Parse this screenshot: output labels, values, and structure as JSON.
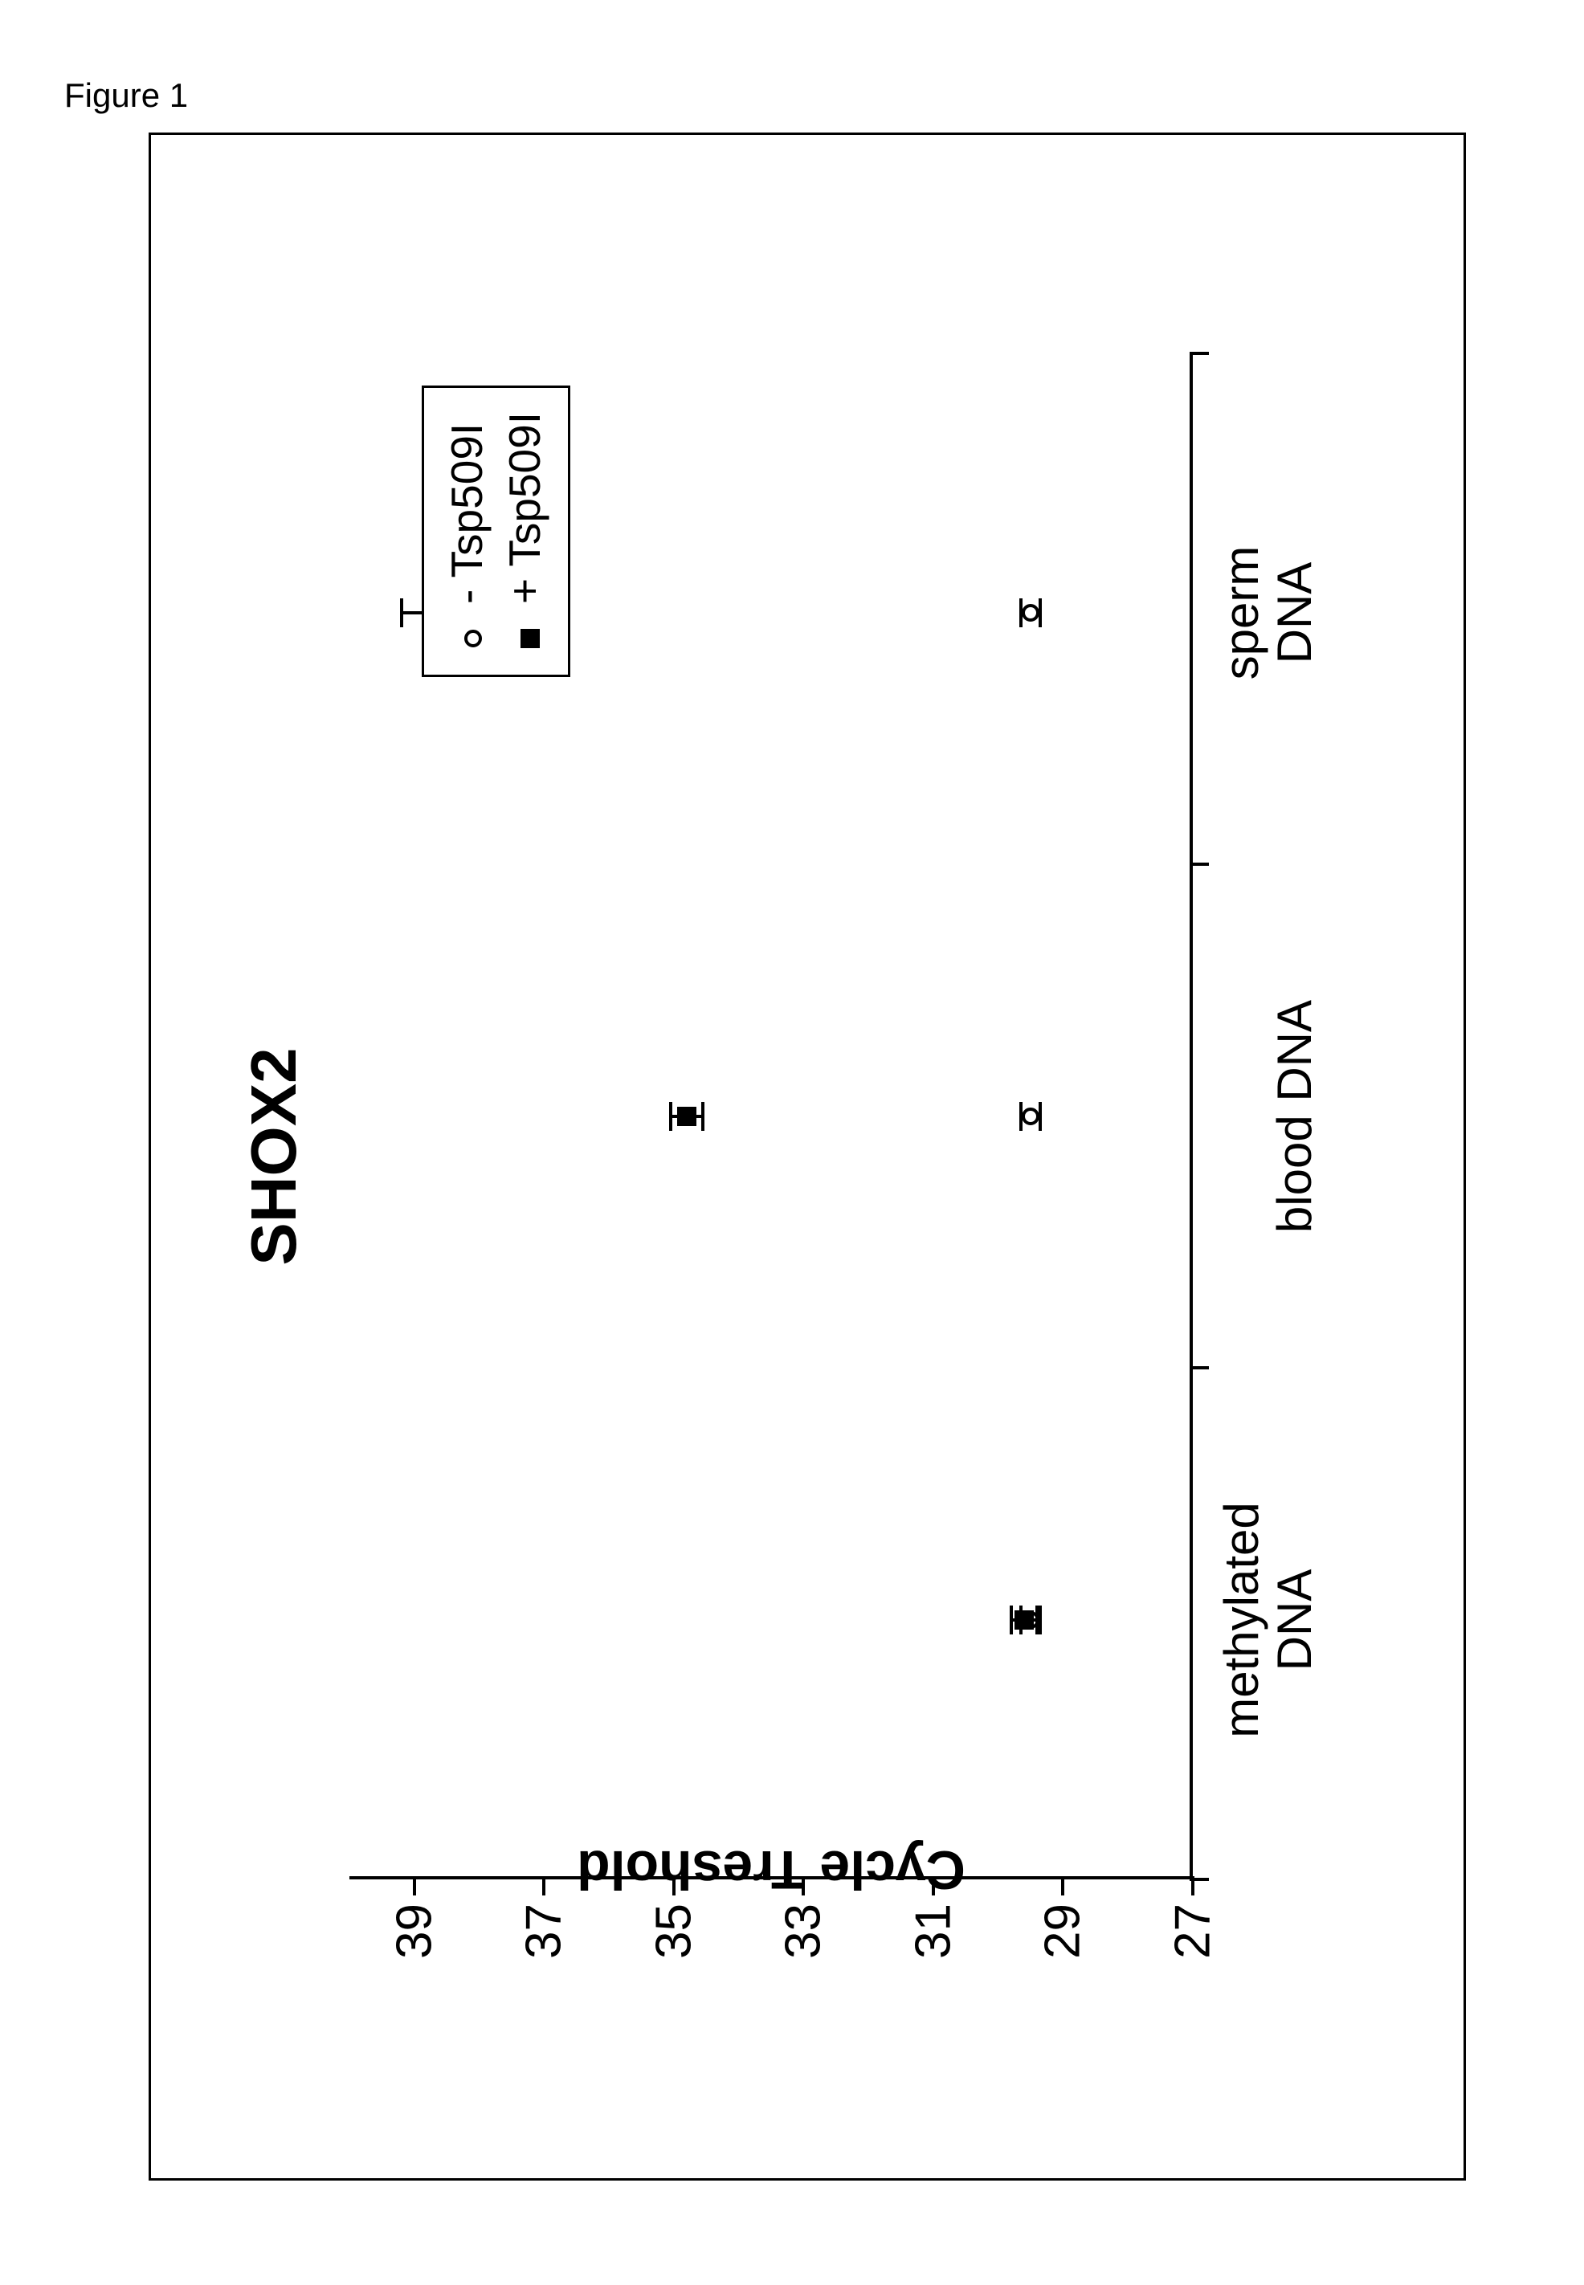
{
  "figure_label": "Figure 1",
  "chart": {
    "type": "scatter",
    "title": "SHOX2",
    "title_fontsize": 80,
    "background_color": "#ffffff",
    "axis_color": "#000000",
    "y_axis": {
      "label": "Cycle Treshold",
      "label_fontsize": 68,
      "min": 27,
      "max": 40,
      "ticks": [
        27,
        29,
        31,
        33,
        35,
        37,
        39
      ],
      "tick_fontsize": 62
    },
    "x_axis": {
      "categories": [
        "methylated\nDNA",
        "blood DNA",
        "sperm\nDNA"
      ],
      "tick_fontsize": 60,
      "positions_pct": [
        17,
        50,
        83
      ]
    },
    "legend": {
      "position": "top-right",
      "items": [
        {
          "marker": "open-circle",
          "label": "- Tsp509I"
        },
        {
          "marker": "filled-square",
          "label": "+ Tsp509I"
        }
      ],
      "border_color": "#000000",
      "fontsize": 55
    },
    "series": [
      {
        "name": "minus_Tsp509I",
        "marker": "open-circle",
        "marker_color": "#000000",
        "points": [
          {
            "x_pct": 17,
            "y": 29.5,
            "err": 0.15
          },
          {
            "x_pct": 50,
            "y": 29.5,
            "err": 0.15
          },
          {
            "x_pct": 83,
            "y": 29.5,
            "err": 0.15
          }
        ]
      },
      {
        "name": "plus_Tsp509I",
        "marker": "filled-square",
        "marker_color": "#000000",
        "points": [
          {
            "x_pct": 17,
            "y": 29.6,
            "err": 0.2
          },
          {
            "x_pct": 50,
            "y": 34.8,
            "err": 0.25
          },
          {
            "x_pct": 83,
            "y": 38.0,
            "err": 1.2
          }
        ]
      }
    ]
  }
}
